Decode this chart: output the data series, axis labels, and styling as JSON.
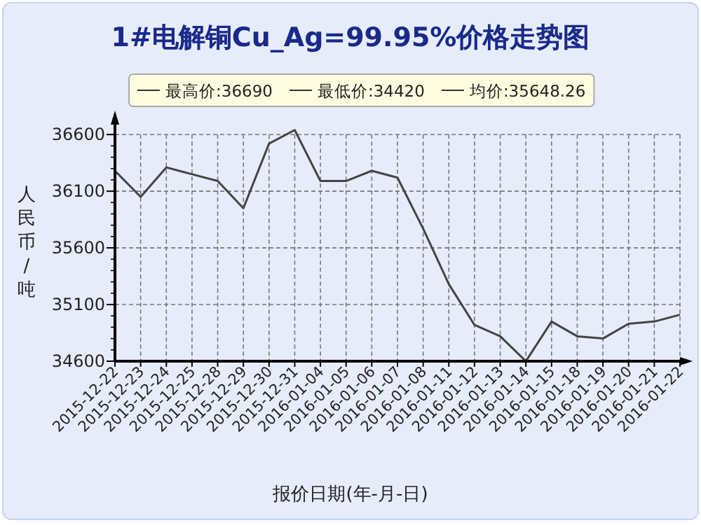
{
  "chart_data": {
    "type": "line",
    "title": "1#电解铜Cu_Ag=99.95%价格走势图",
    "xlabel": "报价日期(年-月-日)",
    "ylabel": "人民币/吨",
    "annotations": [
      "最高价:36690",
      "最低价:34420",
      "均价:35648.26"
    ],
    "categories": [
      "2015-12-22",
      "2015-12-23",
      "2015-12-24",
      "2015-12-25",
      "2015-12-28",
      "2015-12-29",
      "2015-12-30",
      "2015-12-31",
      "2016-01-04",
      "2016-01-05",
      "2016-01-06",
      "2016-01-07",
      "2016-01-08",
      "2016-01-11",
      "2016-01-12",
      "2016-01-13",
      "2016-01-14",
      "2016-01-15",
      "2016-01-18",
      "2016-01-19",
      "2016-01-20",
      "2016-01-21",
      "2016-01-22"
    ],
    "series": [
      {
        "color": "#444444",
        "values": [
          36280,
          36050,
          36310,
          36250,
          36190,
          35950,
          36520,
          36640,
          36190,
          36190,
          36280,
          36220,
          35770,
          35280,
          34920,
          34820,
          34600,
          34950,
          34820,
          34800,
          34930,
          34950,
          35010
        ]
      }
    ],
    "ylim": [
      34600,
      36700
    ],
    "yticks": [
      34600,
      35100,
      35600,
      36100,
      36600
    ],
    "grid": true,
    "marker": "none",
    "line_style": "solid"
  }
}
